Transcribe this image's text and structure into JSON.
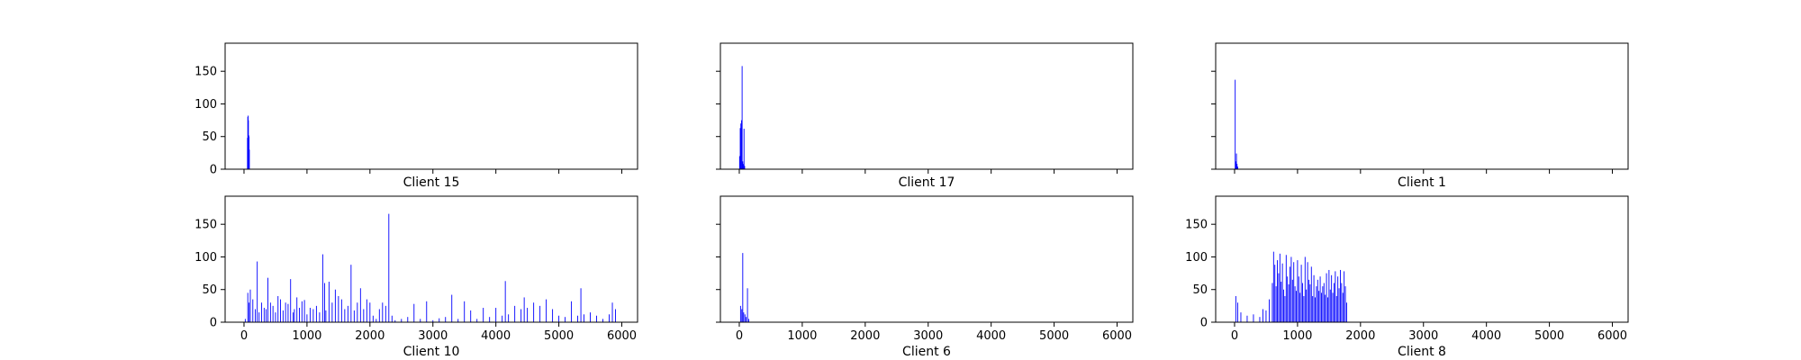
{
  "chart_data": [
    {
      "type": "bar",
      "title": "Client 15",
      "xlim": [
        -300,
        6250
      ],
      "ylim": [
        0,
        193
      ],
      "xticks": [
        0,
        1000,
        2000,
        3000,
        4000,
        5000,
        6000
      ],
      "yticks": [
        0,
        50,
        100,
        150
      ],
      "show_xticklabels": false,
      "show_yticklabels": true,
      "bar_color": "#0000ff",
      "x": [
        55,
        60,
        65,
        70,
        75,
        80,
        85
      ],
      "values": [
        48,
        80,
        82,
        75,
        52,
        50,
        30
      ]
    },
    {
      "type": "bar",
      "title": "Client 17",
      "xlim": [
        -300,
        6250
      ],
      "ylim": [
        0,
        193
      ],
      "xticks": [
        0,
        1000,
        2000,
        3000,
        4000,
        5000,
        6000
      ],
      "yticks": [
        0,
        50,
        100,
        150
      ],
      "show_xticklabels": false,
      "show_yticklabels": false,
      "bar_color": "#0000ff",
      "x": [
        5,
        15,
        25,
        35,
        45,
        55,
        65,
        75,
        85
      ],
      "values": [
        20,
        63,
        70,
        75,
        158,
        12,
        8,
        62,
        5
      ]
    },
    {
      "type": "bar",
      "title": "Client 1",
      "xlim": [
        -300,
        6250
      ],
      "ylim": [
        0,
        193
      ],
      "xticks": [
        0,
        1000,
        2000,
        3000,
        4000,
        5000,
        6000
      ],
      "yticks": [
        0,
        50,
        100,
        150
      ],
      "show_xticklabels": false,
      "show_yticklabels": false,
      "bar_color": "#0000ff",
      "x": [
        10,
        20,
        30,
        40,
        50
      ],
      "values": [
        137,
        12,
        24,
        8,
        4
      ]
    },
    {
      "type": "bar",
      "title": "Client 10",
      "xlim": [
        -300,
        6250
      ],
      "ylim": [
        0,
        193
      ],
      "xticks": [
        0,
        1000,
        2000,
        3000,
        4000,
        5000,
        6000
      ],
      "yticks": [
        0,
        50,
        100,
        150
      ],
      "show_xticklabels": true,
      "show_yticklabels": true,
      "bar_color": "#0000ff",
      "x": [
        20,
        60,
        80,
        100,
        140,
        180,
        210,
        240,
        280,
        320,
        350,
        380,
        420,
        460,
        500,
        540,
        580,
        620,
        660,
        700,
        740,
        780,
        800,
        840,
        880,
        920,
        960,
        1000,
        1050,
        1100,
        1150,
        1200,
        1250,
        1280,
        1300,
        1350,
        1400,
        1450,
        1500,
        1550,
        1600,
        1650,
        1700,
        1750,
        1800,
        1850,
        1900,
        1950,
        2000,
        2050,
        2100,
        2150,
        2200,
        2250,
        2300,
        2350,
        2400,
        2500,
        2600,
        2700,
        2800,
        2900,
        3000,
        3100,
        3200,
        3300,
        3400,
        3500,
        3600,
        3700,
        3800,
        3900,
        4000,
        4100,
        4150,
        4200,
        4300,
        4400,
        4450,
        4500,
        4600,
        4700,
        4800,
        4900,
        5000,
        5100,
        5200,
        5300,
        5350,
        5400,
        5500,
        5600,
        5700,
        5800,
        5850,
        5900
      ],
      "values": [
        5,
        45,
        30,
        50,
        35,
        20,
        93,
        15,
        30,
        22,
        20,
        68,
        30,
        25,
        15,
        40,
        35,
        18,
        30,
        28,
        66,
        15,
        20,
        38,
        22,
        32,
        34,
        12,
        22,
        20,
        25,
        15,
        104,
        60,
        18,
        62,
        30,
        50,
        40,
        35,
        20,
        25,
        88,
        18,
        30,
        52,
        20,
        35,
        30,
        10,
        5,
        20,
        30,
        25,
        166,
        10,
        3,
        5,
        8,
        28,
        5,
        32,
        3,
        6,
        8,
        42,
        5,
        32,
        18,
        5,
        22,
        8,
        22,
        10,
        63,
        12,
        25,
        20,
        38,
        22,
        30,
        25,
        35,
        20,
        10,
        8,
        32,
        10,
        52,
        12,
        15,
        10,
        5,
        12,
        30,
        20
      ]
    },
    {
      "type": "bar",
      "title": "Client 6",
      "xlim": [
        -300,
        6250
      ],
      "ylim": [
        0,
        193
      ],
      "xticks": [
        0,
        1000,
        2000,
        3000,
        4000,
        5000,
        6000
      ],
      "yticks": [
        0,
        50,
        100,
        150
      ],
      "show_xticklabels": true,
      "show_yticklabels": false,
      "bar_color": "#0000ff",
      "x": [
        20,
        40,
        55,
        70,
        90,
        110,
        130,
        150
      ],
      "values": [
        25,
        20,
        106,
        15,
        12,
        8,
        52,
        5
      ]
    },
    {
      "type": "bar",
      "title": "Client 8",
      "xlim": [
        -300,
        6250
      ],
      "ylim": [
        0,
        193
      ],
      "xticks": [
        0,
        1000,
        2000,
        3000,
        4000,
        5000,
        6000
      ],
      "yticks": [
        0,
        50,
        100,
        150
      ],
      "show_xticklabels": true,
      "show_yticklabels": true,
      "bar_color": "#0000ff",
      "x": [
        20,
        50,
        100,
        200,
        300,
        400,
        450,
        500,
        550,
        600,
        620,
        640,
        660,
        680,
        700,
        720,
        740,
        760,
        780,
        800,
        820,
        840,
        860,
        880,
        900,
        920,
        940,
        960,
        980,
        1000,
        1020,
        1040,
        1060,
        1080,
        1100,
        1120,
        1140,
        1160,
        1180,
        1200,
        1220,
        1240,
        1260,
        1280,
        1300,
        1320,
        1340,
        1360,
        1380,
        1400,
        1420,
        1440,
        1460,
        1480,
        1500,
        1520,
        1540,
        1560,
        1580,
        1600,
        1620,
        1640,
        1660,
        1680,
        1700,
        1720,
        1740,
        1760,
        1780
      ],
      "values": [
        40,
        30,
        15,
        10,
        12,
        8,
        20,
        18,
        35,
        60,
        108,
        88,
        55,
        95,
        75,
        105,
        62,
        90,
        50,
        40,
        103,
        70,
        58,
        85,
        100,
        65,
        92,
        55,
        48,
        95,
        70,
        45,
        88,
        60,
        40,
        100,
        50,
        92,
        65,
        58,
        85,
        40,
        72,
        38,
        55,
        65,
        48,
        70,
        45,
        55,
        60,
        42,
        75,
        38,
        80,
        50,
        72,
        45,
        60,
        78,
        40,
        70,
        52,
        80,
        60,
        45,
        78,
        55,
        30
      ]
    }
  ]
}
